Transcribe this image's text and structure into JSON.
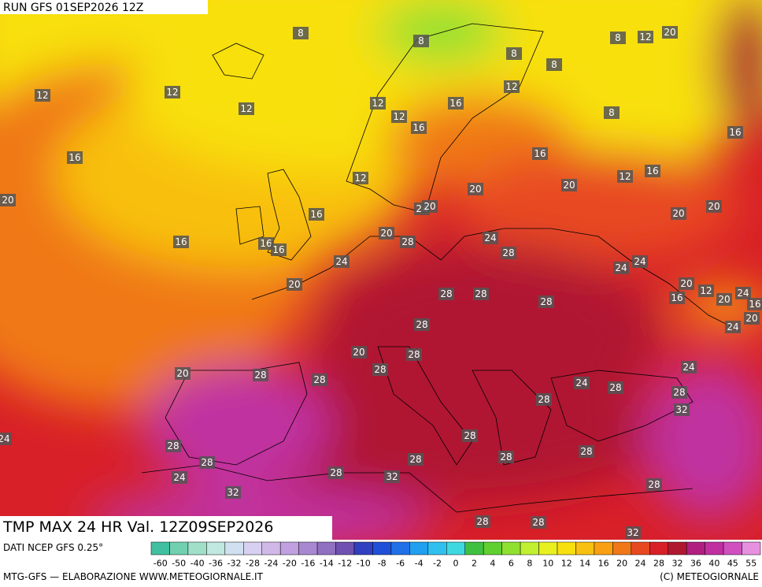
{
  "header": {
    "run": "RUN GFS 01SEP2026 12Z"
  },
  "footer": {
    "title": "TMP MAX 24 HR Val. 12Z09SEP2026",
    "source": "DATI NCEP GFS 0.25°",
    "credit": "MTG-GFS — ELABORAZIONE WWW.METEOGIORNALE.IT",
    "copyright": "(C) METEOGIORNALE"
  },
  "legend": {
    "ticks": [
      -60,
      -50,
      -40,
      -36,
      -32,
      -28,
      -24,
      -20,
      -16,
      -14,
      -12,
      -10,
      -8,
      -6,
      -4,
      -2,
      0,
      2,
      4,
      6,
      8,
      10,
      12,
      14,
      16,
      20,
      24,
      28,
      32,
      36,
      40,
      45,
      55
    ],
    "colors": [
      "#40c0a0",
      "#70d0b0",
      "#a0e0c8",
      "#c0e8e0",
      "#d0e0f0",
      "#d8d0f0",
      "#d0b8e8",
      "#c0a0e0",
      "#a888d0",
      "#9070c0",
      "#7050b0",
      "#3040c0",
      "#2050d8",
      "#2070e8",
      "#20a0f0",
      "#30c0f0",
      "#40d8e0",
      "#40c040",
      "#60d030",
      "#90e030",
      "#c0f030",
      "#e8f020",
      "#f8e010",
      "#f8c010",
      "#f8a010",
      "#f07818",
      "#e84820",
      "#d82028",
      "#b01830",
      "#b02080",
      "#c030a0",
      "#d050c0",
      "#e890e0"
    ]
  },
  "map": {
    "labels": [
      8,
      8,
      8,
      8,
      8,
      12,
      20,
      12,
      12,
      12,
      12,
      12,
      16,
      12,
      8,
      16,
      16,
      16,
      16,
      12,
      12,
      16,
      20,
      20,
      20,
      24,
      20,
      16,
      20,
      20,
      20,
      28,
      24,
      16,
      16,
      16,
      28,
      24,
      24,
      24,
      20,
      20,
      12,
      16,
      20,
      24,
      16,
      28,
      28,
      28,
      24,
      20,
      28,
      20,
      28,
      28,
      24,
      20,
      28,
      28,
      24,
      28,
      28,
      28,
      32,
      24,
      28,
      28,
      28,
      28,
      28,
      28,
      24,
      28,
      32,
      28,
      32,
      28,
      28,
      32
    ]
  }
}
